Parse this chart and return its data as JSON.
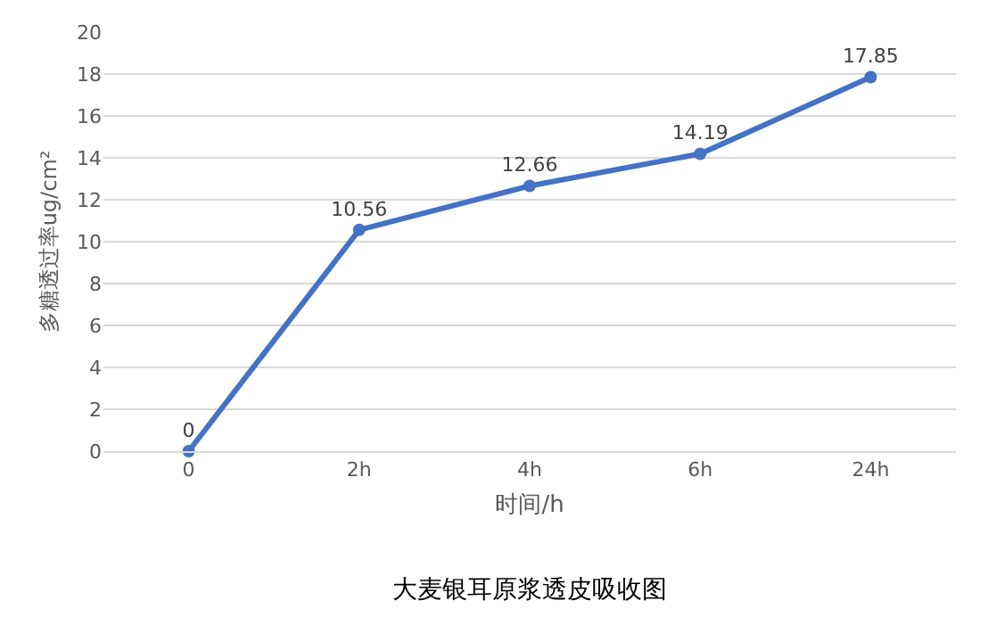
{
  "chart_data": {
    "type": "line",
    "title": "大麦银耳原浆透皮吸收图",
    "xlabel": "时间/h",
    "ylabel": "多糖透过率ug/cm²",
    "categories": [
      "0",
      "2h",
      "4h",
      "6h",
      "24h"
    ],
    "series": [
      {
        "color": "#4472c4",
        "values": [
          0,
          10.56,
          12.66,
          14.19,
          17.85
        ]
      }
    ],
    "ylim": [
      0,
      20
    ],
    "yticks": [
      0,
      2,
      4,
      6,
      8,
      10,
      12,
      14,
      16,
      18,
      20
    ],
    "grid": "y",
    "marker": "circle",
    "line_style": "solid",
    "data_labels": true
  }
}
